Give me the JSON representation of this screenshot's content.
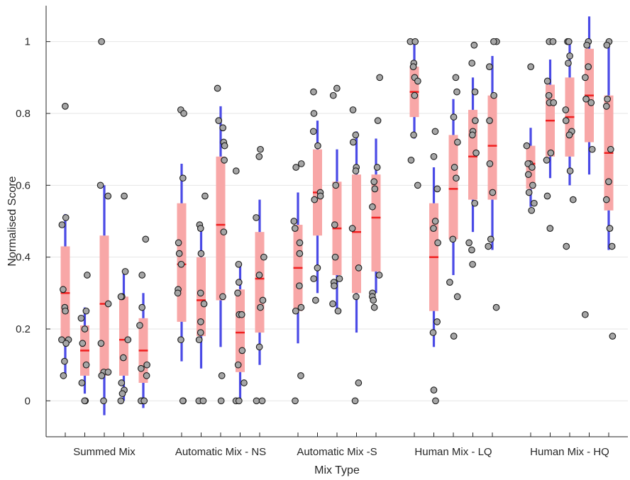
{
  "chart_data": {
    "type": "box",
    "xlabel": "Mix Type",
    "ylabel": "Normalised Score",
    "ylim": [
      -0.1,
      1.1
    ],
    "y_ticks": [
      0,
      0.2,
      0.4,
      0.6,
      0.8,
      1
    ],
    "grid": "horizontal",
    "groups": [
      "Summed Mix",
      "Automatic Mix - NS",
      "Automatic Mix -S",
      "Human Mix - LQ",
      "Human Mix - HQ"
    ],
    "boxes_per_group": 5,
    "colors": {
      "box": "#f8a7a7",
      "whisker": "#4a4ae6",
      "median": "#f02020",
      "point_fill": "#a6a6a6",
      "point_stroke": "#1a1a1a",
      "axis": "#262626",
      "grid": "#e6e6e6"
    },
    "boxes": [
      {
        "group": 0,
        "slot": 0,
        "q1": 0.17,
        "median": 0.3,
        "q3": 0.43,
        "whisker_low": 0.07,
        "whisker_high": 0.52,
        "points": [
          0.82,
          0.51,
          0.49,
          0.31,
          0.26,
          0.25,
          0.17,
          0.17,
          0.16,
          0.11,
          0.07
        ]
      },
      {
        "group": 0,
        "slot": 1,
        "q1": 0.07,
        "median": 0.14,
        "q3": 0.21,
        "whisker_low": 0.02,
        "whisker_high": 0.26,
        "points": [
          0.35,
          0.25,
          0.23,
          0.2,
          0.16,
          0.1,
          0.05,
          0.0,
          0.0
        ]
      },
      {
        "group": 0,
        "slot": 2,
        "q1": 0.07,
        "median": 0.27,
        "q3": 0.46,
        "whisker_low": -0.04,
        "whisker_high": 0.6,
        "points": [
          1.0,
          0.6,
          0.57,
          0.27,
          0.16,
          0.08,
          0.08,
          0.07,
          0.0
        ]
      },
      {
        "group": 0,
        "slot": 3,
        "q1": 0.07,
        "median": 0.17,
        "q3": 0.29,
        "whisker_low": 0.0,
        "whisker_high": 0.36,
        "points": [
          0.57,
          0.36,
          0.29,
          0.29,
          0.17,
          0.12,
          0.05,
          0.03,
          0.02,
          0.0
        ]
      },
      {
        "group": 0,
        "slot": 4,
        "q1": 0.05,
        "median": 0.14,
        "q3": 0.23,
        "whisker_low": -0.02,
        "whisker_high": 0.3,
        "points": [
          0.45,
          0.35,
          0.26,
          0.21,
          0.1,
          0.09,
          0.07,
          0.0,
          0.0,
          0.0
        ]
      },
      {
        "group": 1,
        "slot": 0,
        "q1": 0.22,
        "median": 0.38,
        "q3": 0.55,
        "whisker_low": 0.11,
        "whisker_high": 0.66,
        "points": [
          0.81,
          0.8,
          0.62,
          0.44,
          0.41,
          0.38,
          0.31,
          0.3,
          0.17,
          0.0,
          0.0
        ]
      },
      {
        "group": 1,
        "slot": 1,
        "q1": 0.18,
        "median": 0.28,
        "q3": 0.4,
        "whisker_low": 0.09,
        "whisker_high": 0.49,
        "points": [
          0.57,
          0.49,
          0.48,
          0.41,
          0.3,
          0.27,
          0.22,
          0.19,
          0.17,
          0.0,
          0.0
        ]
      },
      {
        "group": 1,
        "slot": 2,
        "q1": 0.28,
        "median": 0.49,
        "q3": 0.68,
        "whisker_low": 0.15,
        "whisker_high": 0.82,
        "points": [
          0.87,
          0.78,
          0.76,
          0.72,
          0.71,
          0.67,
          0.47,
          0.29,
          0.07,
          0.0
        ]
      },
      {
        "group": 1,
        "slot": 3,
        "q1": 0.08,
        "median": 0.19,
        "q3": 0.31,
        "whisker_low": 0.0,
        "whisker_high": 0.38,
        "points": [
          0.64,
          0.38,
          0.33,
          0.3,
          0.24,
          0.24,
          0.14,
          0.1,
          0.05,
          0.0,
          0.0
        ]
      },
      {
        "group": 1,
        "slot": 4,
        "q1": 0.19,
        "median": 0.34,
        "q3": 0.47,
        "whisker_low": 0.1,
        "whisker_high": 0.56,
        "points": [
          0.7,
          0.68,
          0.51,
          0.4,
          0.35,
          0.28,
          0.26,
          0.15,
          0.0,
          0.0
        ]
      },
      {
        "group": 2,
        "slot": 0,
        "q1": 0.25,
        "median": 0.37,
        "q3": 0.49,
        "whisker_low": 0.16,
        "whisker_high": 0.58,
        "points": [
          0.66,
          0.65,
          0.5,
          0.48,
          0.44,
          0.41,
          0.32,
          0.26,
          0.25,
          0.07,
          0.0
        ]
      },
      {
        "group": 2,
        "slot": 1,
        "q1": 0.46,
        "median": 0.58,
        "q3": 0.7,
        "whisker_low": 0.3,
        "whisker_high": 0.78,
        "points": [
          0.86,
          0.8,
          0.75,
          0.71,
          0.58,
          0.57,
          0.56,
          0.37,
          0.34,
          0.28
        ]
      },
      {
        "group": 2,
        "slot": 2,
        "q1": 0.35,
        "median": 0.48,
        "q3": 0.61,
        "whisker_low": 0.25,
        "whisker_high": 0.7,
        "points": [
          0.87,
          0.85,
          0.6,
          0.49,
          0.4,
          0.34,
          0.33,
          0.32,
          0.27,
          0.25
        ]
      },
      {
        "group": 2,
        "slot": 3,
        "q1": 0.3,
        "median": 0.47,
        "q3": 0.63,
        "whisker_low": 0.19,
        "whisker_high": 0.75,
        "points": [
          0.81,
          0.74,
          0.72,
          0.65,
          0.64,
          0.48,
          0.37,
          0.29,
          0.05,
          0.0
        ]
      },
      {
        "group": 2,
        "slot": 4,
        "q1": 0.36,
        "median": 0.51,
        "q3": 0.63,
        "whisker_low": 0.3,
        "whisker_high": 0.73,
        "points": [
          0.9,
          0.78,
          0.65,
          0.61,
          0.59,
          0.54,
          0.35,
          0.3,
          0.29,
          0.28,
          0.26
        ]
      },
      {
        "group": 3,
        "slot": 0,
        "q1": 0.79,
        "median": 0.86,
        "q3": 0.93,
        "whisker_low": 0.73,
        "whisker_high": 1.0,
        "points": [
          1.0,
          1.0,
          0.94,
          0.93,
          0.9,
          0.89,
          0.85,
          0.74,
          0.67,
          0.6
        ]
      },
      {
        "group": 3,
        "slot": 1,
        "q1": 0.25,
        "median": 0.4,
        "q3": 0.55,
        "whisker_low": 0.15,
        "whisker_high": 0.65,
        "points": [
          0.75,
          0.68,
          0.59,
          0.5,
          0.48,
          0.44,
          0.22,
          0.19,
          0.03,
          0.0
        ]
      },
      {
        "group": 3,
        "slot": 2,
        "q1": 0.45,
        "median": 0.59,
        "q3": 0.74,
        "whisker_low": 0.35,
        "whisker_high": 0.84,
        "points": [
          0.9,
          0.86,
          0.79,
          0.72,
          0.65,
          0.62,
          0.45,
          0.33,
          0.29,
          0.18
        ]
      },
      {
        "group": 3,
        "slot": 3,
        "q1": 0.56,
        "median": 0.68,
        "q3": 0.81,
        "whisker_low": 0.47,
        "whisker_high": 0.9,
        "points": [
          0.99,
          0.94,
          0.86,
          0.78,
          0.75,
          0.74,
          0.69,
          0.55,
          0.44,
          0.42,
          0.38
        ]
      },
      {
        "group": 3,
        "slot": 4,
        "q1": 0.56,
        "median": 0.71,
        "q3": 0.85,
        "whisker_low": 0.42,
        "whisker_high": 0.96,
        "points": [
          1.0,
          1.0,
          0.93,
          0.85,
          0.78,
          0.66,
          0.58,
          0.45,
          0.43,
          0.26
        ]
      },
      {
        "group": 4,
        "slot": 0,
        "q1": 0.59,
        "median": 0.66,
        "q3": 0.71,
        "whisker_low": 0.54,
        "whisker_high": 0.76,
        "points": [
          0.93,
          0.71,
          0.66,
          0.66,
          0.65,
          0.63,
          0.6,
          0.58,
          0.55,
          0.53
        ]
      },
      {
        "group": 4,
        "slot": 1,
        "q1": 0.68,
        "median": 0.78,
        "q3": 0.88,
        "whisker_low": 0.62,
        "whisker_high": 0.95,
        "points": [
          1.0,
          1.0,
          0.89,
          0.85,
          0.83,
          0.83,
          0.69,
          0.67,
          0.57,
          0.48
        ]
      },
      {
        "group": 4,
        "slot": 2,
        "q1": 0.68,
        "median": 0.79,
        "q3": 0.9,
        "whisker_low": 0.6,
        "whisker_high": 1.0,
        "points": [
          1.0,
          1.0,
          0.96,
          0.94,
          0.81,
          0.78,
          0.75,
          0.74,
          0.64,
          0.56,
          0.43
        ]
      },
      {
        "group": 4,
        "slot": 3,
        "q1": 0.72,
        "median": 0.85,
        "q3": 0.98,
        "whisker_low": 0.63,
        "whisker_high": 1.07,
        "points": [
          1.0,
          0.99,
          0.93,
          0.9,
          0.84,
          0.83,
          0.7,
          0.24
        ]
      },
      {
        "group": 4,
        "slot": 4,
        "q1": 0.53,
        "median": 0.69,
        "q3": 0.85,
        "whisker_low": 0.42,
        "whisker_high": 1.0,
        "points": [
          1.0,
          0.99,
          0.84,
          0.82,
          0.7,
          0.61,
          0.56,
          0.48,
          0.43,
          0.18
        ]
      }
    ]
  }
}
